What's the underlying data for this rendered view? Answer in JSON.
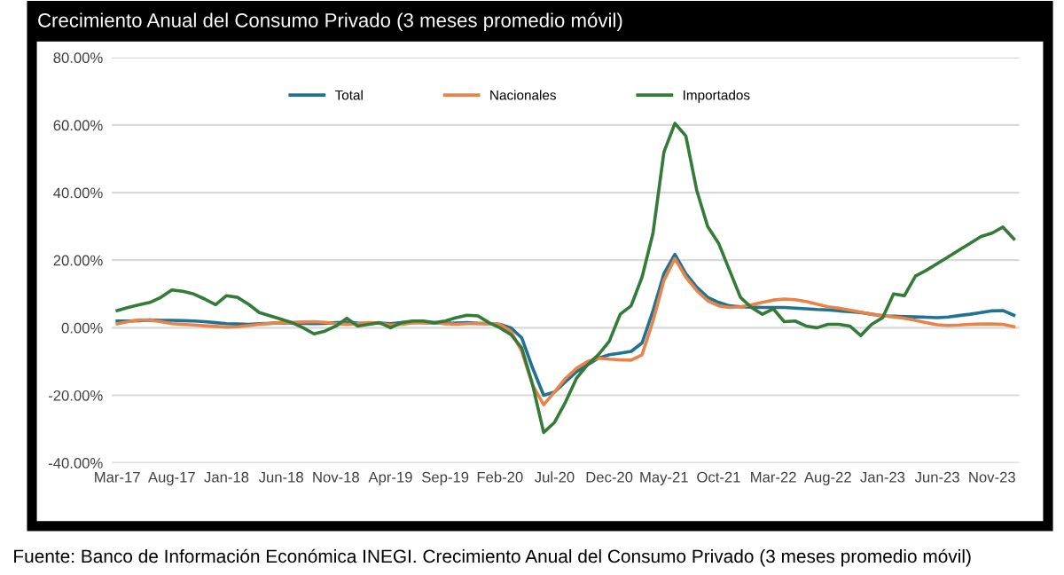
{
  "chart_data": {
    "type": "line",
    "title": "Crecimiento Anual del Consumo Privado (3 meses promedio móvil)",
    "annotations": [
      "Fuente: Banco de Información Económica INEGI. Crecimiento Anual del Consumo Privado (3 meses promedio móvil)"
    ],
    "categories": [
      "Mar-17",
      null,
      null,
      null,
      null,
      "Aug-17",
      null,
      null,
      null,
      null,
      "Jan-18",
      null,
      null,
      null,
      null,
      "Jun-18",
      null,
      null,
      null,
      null,
      "Nov-18",
      null,
      null,
      null,
      null,
      "Apr-19",
      null,
      null,
      null,
      null,
      "Sep-19",
      null,
      null,
      null,
      null,
      "Feb-20",
      null,
      null,
      null,
      null,
      "Jul-20",
      null,
      null,
      null,
      null,
      "Dec-20",
      null,
      null,
      null,
      null,
      "May-21",
      null,
      null,
      null,
      null,
      "Oct-21",
      null,
      null,
      null,
      null,
      "Mar-22",
      null,
      null,
      null,
      null,
      "Aug-22",
      null,
      null,
      null,
      null,
      "Jan-23",
      null,
      null,
      null,
      null,
      "Jun-23",
      null,
      null,
      null,
      null,
      "Nov-23",
      null,
      null
    ],
    "series": [
      {
        "name": "Total",
        "color": "#22728f",
        "values": [
          2,
          2,
          2.1,
          2.3,
          2.2,
          2.2,
          2.1,
          2,
          1.8,
          1.5,
          1.2,
          1.1,
          1,
          1.2,
          1.3,
          1.5,
          1.4,
          1.3,
          1.2,
          1.3,
          1.5,
          1.6,
          1.4,
          1.3,
          1.4,
          1.2,
          1.5,
          1.6,
          1.5,
          1.4,
          1.3,
          1.4,
          1.5,
          1.3,
          1.2,
          1,
          0,
          -3,
          -12,
          -20,
          -19,
          -16,
          -13,
          -11,
          -9,
          -8,
          -7.5,
          -7,
          -4.5,
          5,
          16,
          21.7,
          16,
          12,
          9,
          7.5,
          6.5,
          6.2,
          6.1,
          6,
          6,
          6,
          5.8,
          5.6,
          5.4,
          5.3,
          5,
          4.8,
          4.5,
          4,
          3.5,
          3.4,
          3.3,
          3.2,
          3.1,
          3,
          3.2,
          3.6,
          4,
          4.5,
          5,
          5.1,
          3.7
        ]
      },
      {
        "name": "Nacionales",
        "color": "#e8834a",
        "values": [
          1.2,
          1.8,
          2.3,
          2.3,
          1.8,
          1.2,
          1,
          0.8,
          0.6,
          0.4,
          0.2,
          0.3,
          0.6,
          1,
          1.3,
          1.5,
          1.6,
          1.7,
          1.8,
          1.6,
          1.2,
          1,
          1.2,
          1.5,
          1.3,
          0.8,
          1,
          1.4,
          1.6,
          1.5,
          1.2,
          1,
          1.2,
          1.3,
          1.2,
          1,
          -1,
          -7,
          -17,
          -22.8,
          -19,
          -15,
          -12,
          -10,
          -9,
          -9.3,
          -9.5,
          -9.6,
          -8,
          2,
          14,
          20.5,
          15,
          11,
          8,
          6.5,
          6,
          6.2,
          6.8,
          7.5,
          8.2,
          8.5,
          8.3,
          7.8,
          7,
          6.2,
          5.8,
          5.2,
          4.6,
          4,
          3.6,
          3.2,
          2.8,
          2.2,
          1.5,
          0.9,
          0.7,
          0.8,
          1,
          1.1,
          1.1,
          1,
          0.3
        ]
      },
      {
        "name": "Importados",
        "color": "#357a38",
        "values": [
          5.1,
          6,
          6.8,
          7.5,
          9,
          11.2,
          10.8,
          10,
          8.5,
          6.8,
          9.5,
          9,
          7,
          4.5,
          3.5,
          2.5,
          1.5,
          0,
          -1.8,
          -1,
          0.5,
          2.8,
          0.5,
          1,
          1.5,
          0,
          1.5,
          2,
          2,
          1.5,
          2,
          3,
          3.7,
          3.5,
          1.5,
          0,
          -2,
          -6,
          -17,
          -31,
          -28,
          -22,
          -15,
          -11,
          -8,
          -4,
          4,
          6.5,
          15,
          28,
          52,
          60.5,
          56.8,
          40.7,
          30,
          25,
          17,
          9,
          6,
          4,
          5.6,
          1.8,
          2,
          0.5,
          0,
          1,
          1,
          0.5,
          -2.3,
          1,
          3,
          10,
          9.5,
          15.3,
          17,
          19,
          21,
          23,
          25,
          27,
          28,
          29.8,
          26.3
        ]
      }
    ],
    "ylim": [
      -40,
      80
    ],
    "yticks": [
      {
        "value": -40,
        "label": "-40.00%"
      },
      {
        "value": -20,
        "label": "-20.00%"
      },
      {
        "value": 0,
        "label": "0.00%"
      },
      {
        "value": 20,
        "label": "20.00%"
      },
      {
        "value": 40,
        "label": "40.00%"
      },
      {
        "value": 60,
        "label": "60.00%"
      },
      {
        "value": 80,
        "label": "80.00%"
      }
    ],
    "grid": "y",
    "legend": "top",
    "line_style": "solid",
    "marker": "none"
  }
}
